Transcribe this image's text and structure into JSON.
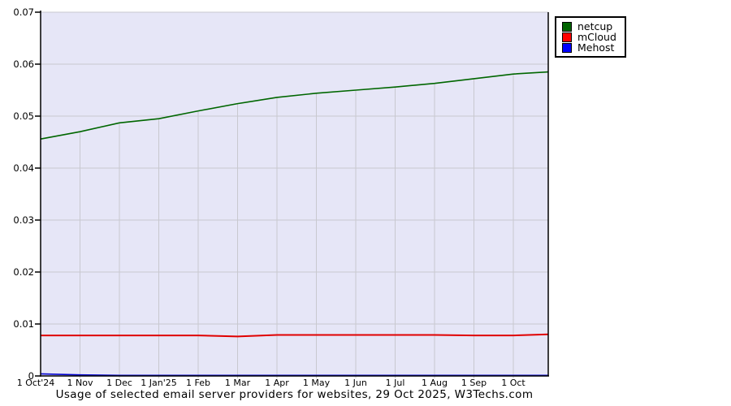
{
  "chart_data": {
    "type": "line",
    "title": "Usage of selected email server providers for websites, 29 Oct 2025, W3Techs.com",
    "x_tick_labels": [
      "1 Oct'24",
      "1 Nov",
      "1 Dec",
      "1 Jan'25",
      "1 Feb",
      "1 Mar",
      "1 Apr",
      "1 May",
      "1 Jun",
      "1 Jul",
      "1 Aug",
      "1 Sep",
      "1 Oct"
    ],
    "y_tick_labels": [
      "0",
      "0.01",
      "0.02",
      "0.03",
      "0.04",
      "0.05",
      "0.06",
      "0.07"
    ],
    "y_ticks": [
      0,
      0.01,
      0.02,
      0.03,
      0.04,
      0.05,
      0.06,
      0.07
    ],
    "ylim": [
      0,
      0.07
    ],
    "grid": true,
    "legend_position": "top-right",
    "series": [
      {
        "name": "netcup",
        "color": "#006600",
        "swatch_color": "#006400",
        "values": [
          0.0456,
          0.047,
          0.0487,
          0.0495,
          0.051,
          0.0524,
          0.0536,
          0.0544,
          0.055,
          0.0556,
          0.0563,
          0.0572,
          0.0581,
          0.0585
        ]
      },
      {
        "name": "mCloud",
        "color": "#e00000",
        "swatch_color": "#ff0000",
        "values": [
          0.0078,
          0.0078,
          0.0078,
          0.0078,
          0.0078,
          0.0076,
          0.0079,
          0.0079,
          0.0079,
          0.0079,
          0.0079,
          0.0078,
          0.0078,
          0.008
        ]
      },
      {
        "name": "Mehost",
        "color": "#0000cc",
        "swatch_color": "#0000ff",
        "values": [
          0.0004,
          0.0002,
          0.0001,
          0.0001,
          0.0001,
          0.0001,
          0.0001,
          0.0001,
          0.0001,
          0.0001,
          0.0001,
          0.0001,
          0.0001,
          0.0001
        ]
      }
    ],
    "colors": {
      "plot_background": "#e6e6f7",
      "gridline": "#c8c8cf",
      "axis": "#000000"
    }
  }
}
